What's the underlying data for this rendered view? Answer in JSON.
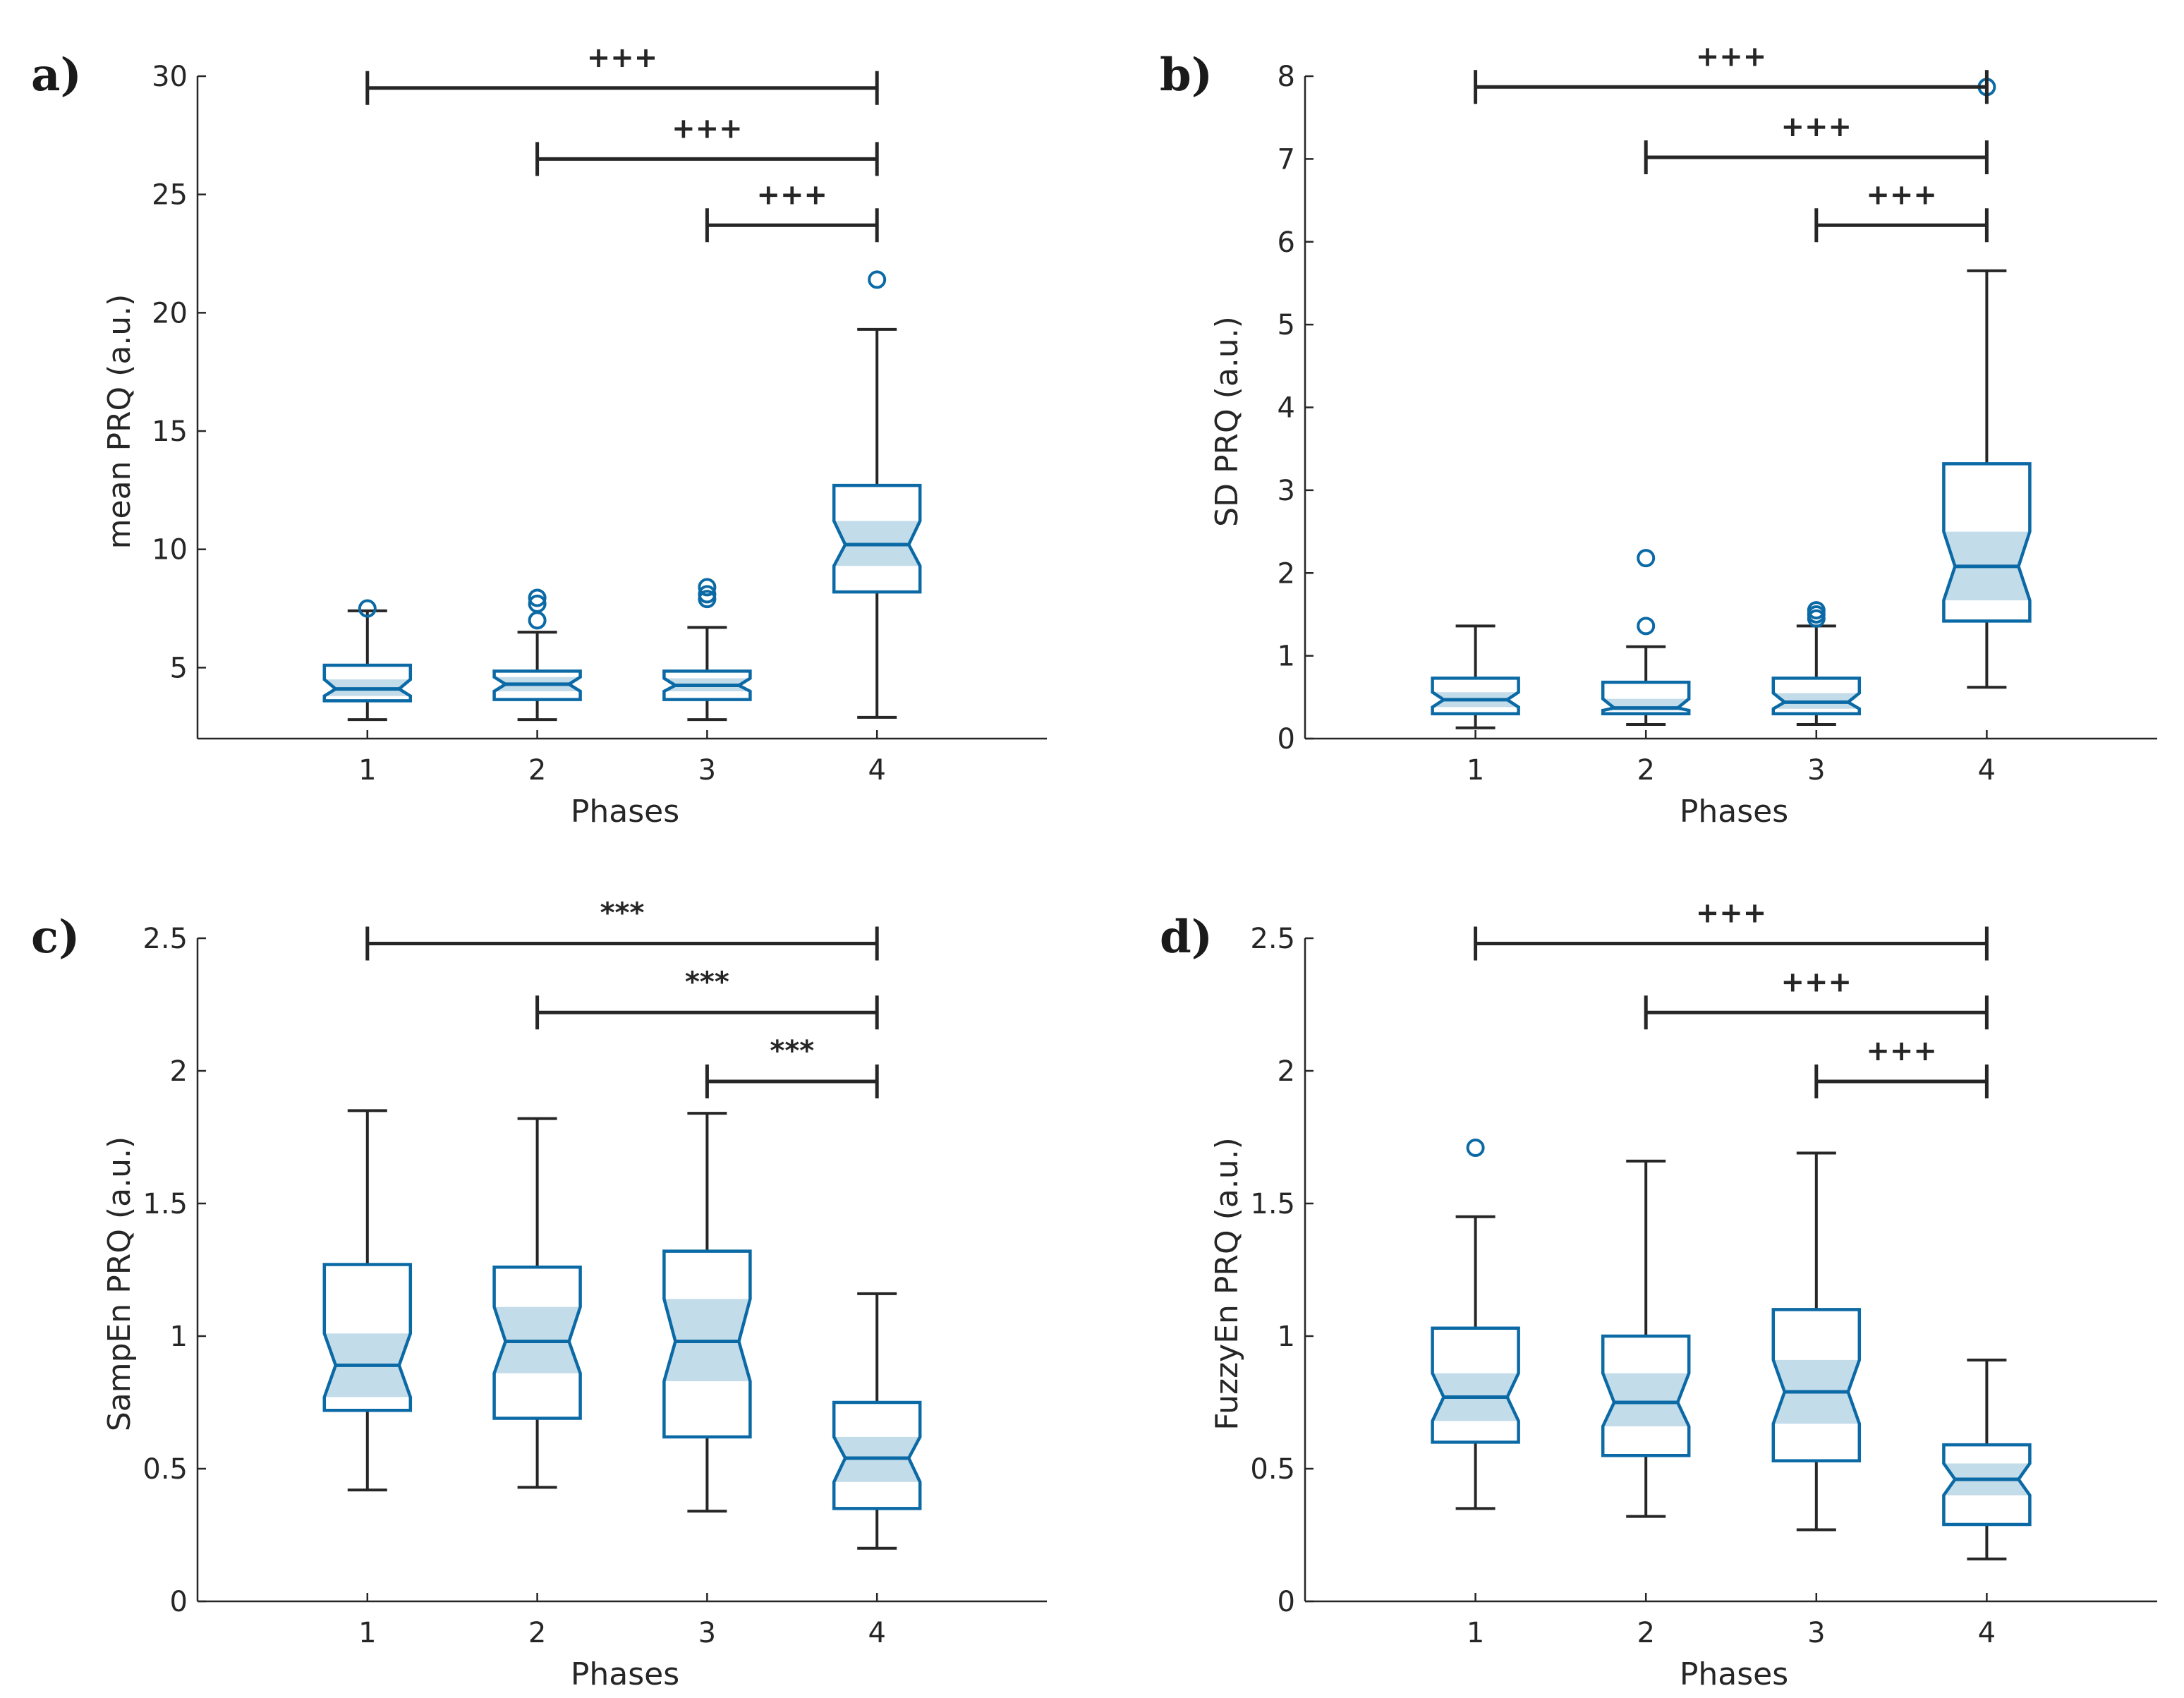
{
  "chart_data": [
    {
      "panel": "a)",
      "type": "box",
      "xlabel": "Phases",
      "ylabel": "mean PRQ (a.u.)",
      "categories": [
        "1",
        "2",
        "3",
        "4"
      ],
      "ylim": [
        2,
        30
      ],
      "yticks": [
        5,
        10,
        15,
        20,
        25,
        30
      ],
      "ytick_labels": [
        "5",
        "10",
        "15",
        "20",
        "25",
        "30"
      ],
      "boxes": [
        {
          "category": "1",
          "whisker_low": 2.8,
          "q1": 3.6,
          "notch_low": 3.8,
          "median": 4.1,
          "notch_high": 4.5,
          "q3": 5.1,
          "whisker_high": 7.4,
          "outliers": [
            7.5
          ]
        },
        {
          "category": "2",
          "whisker_low": 2.8,
          "q1": 3.65,
          "notch_low": 4.0,
          "median": 4.3,
          "notch_high": 4.6,
          "q3": 4.85,
          "whisker_high": 6.5,
          "outliers": [
            7.0,
            7.7,
            7.95
          ]
        },
        {
          "category": "3",
          "whisker_low": 2.8,
          "q1": 3.65,
          "notch_low": 4.0,
          "median": 4.25,
          "notch_high": 4.55,
          "q3": 4.85,
          "whisker_high": 6.7,
          "outliers": [
            7.9,
            8.1,
            8.4
          ]
        },
        {
          "category": "4",
          "whisker_low": 2.9,
          "q1": 8.2,
          "notch_low": 9.3,
          "median": 10.2,
          "notch_high": 11.2,
          "q3": 12.7,
          "whisker_high": 19.3,
          "outliers": [
            21.4
          ]
        }
      ],
      "significance": [
        {
          "from": "1",
          "to": "4",
          "label": "+++",
          "y": 29.5
        },
        {
          "from": "2",
          "to": "4",
          "label": "+++",
          "y": 26.5
        },
        {
          "from": "3",
          "to": "4",
          "label": "+++",
          "y": 23.7
        }
      ]
    },
    {
      "panel": "b)",
      "type": "box",
      "xlabel": "Phases",
      "ylabel": "SD PRQ (a.u.)",
      "categories": [
        "1",
        "2",
        "3",
        "4"
      ],
      "ylim": [
        0,
        8
      ],
      "yticks": [
        0,
        1,
        2,
        3,
        4,
        5,
        6,
        7,
        8
      ],
      "ytick_labels": [
        "0",
        "1",
        "2",
        "3",
        "4",
        "5",
        "6",
        "7",
        "8"
      ],
      "boxes": [
        {
          "category": "1",
          "whisker_low": 0.13,
          "q1": 0.3,
          "notch_low": 0.38,
          "median": 0.47,
          "notch_high": 0.56,
          "q3": 0.73,
          "whisker_high": 1.36,
          "outliers": []
        },
        {
          "category": "2",
          "whisker_low": 0.17,
          "q1": 0.3,
          "notch_low": 0.34,
          "median": 0.37,
          "notch_high": 0.48,
          "q3": 0.68,
          "whisker_high": 1.11,
          "outliers": [
            1.36,
            2.18
          ]
        },
        {
          "category": "3",
          "whisker_low": 0.17,
          "q1": 0.3,
          "notch_low": 0.36,
          "median": 0.44,
          "notch_high": 0.55,
          "q3": 0.73,
          "whisker_high": 1.36,
          "outliers": [
            1.45,
            1.5,
            1.55
          ]
        },
        {
          "category": "4",
          "whisker_low": 0.62,
          "q1": 1.42,
          "notch_low": 1.67,
          "median": 2.08,
          "notch_high": 2.5,
          "q3": 3.32,
          "whisker_high": 5.65,
          "outliers": [
            7.87
          ]
        }
      ],
      "significance": [
        {
          "from": "1",
          "to": "4",
          "label": "+++",
          "y": 7.87
        },
        {
          "from": "2",
          "to": "4",
          "label": "+++",
          "y": 7.02
        },
        {
          "from": "3",
          "to": "4",
          "label": "+++",
          "y": 6.2
        }
      ]
    },
    {
      "panel": "c)",
      "type": "box",
      "xlabel": "Phases",
      "ylabel": "SampEn PRQ (a.u.)",
      "categories": [
        "1",
        "2",
        "3",
        "4"
      ],
      "ylim": [
        0,
        2.5
      ],
      "yticks": [
        0,
        0.5,
        1,
        1.5,
        2,
        2.5
      ],
      "ytick_labels": [
        "0",
        "0.5",
        "1",
        "1.5",
        "2",
        "2.5"
      ],
      "boxes": [
        {
          "category": "1",
          "whisker_low": 0.42,
          "q1": 0.72,
          "notch_low": 0.77,
          "median": 0.89,
          "notch_high": 1.01,
          "q3": 1.27,
          "whisker_high": 1.85,
          "outliers": []
        },
        {
          "category": "2",
          "whisker_low": 0.43,
          "q1": 0.69,
          "notch_low": 0.86,
          "median": 0.98,
          "notch_high": 1.11,
          "q3": 1.26,
          "whisker_high": 1.82,
          "outliers": []
        },
        {
          "category": "3",
          "whisker_low": 0.34,
          "q1": 0.62,
          "notch_low": 0.83,
          "median": 0.98,
          "notch_high": 1.14,
          "q3": 1.32,
          "whisker_high": 1.84,
          "outliers": []
        },
        {
          "category": "4",
          "whisker_low": 0.2,
          "q1": 0.35,
          "notch_low": 0.45,
          "median": 0.54,
          "notch_high": 0.62,
          "q3": 0.75,
          "whisker_high": 1.16,
          "outliers": []
        }
      ],
      "significance": [
        {
          "from": "1",
          "to": "4",
          "label": "***",
          "y": 2.48
        },
        {
          "from": "2",
          "to": "4",
          "label": "***",
          "y": 2.22
        },
        {
          "from": "3",
          "to": "4",
          "label": "***",
          "y": 1.96
        }
      ]
    },
    {
      "panel": "d)",
      "type": "box",
      "xlabel": "Phases",
      "ylabel": "FuzzyEn PRQ (a.u.)",
      "categories": [
        "1",
        "2",
        "3",
        "4"
      ],
      "ylim": [
        0,
        2.5
      ],
      "yticks": [
        0,
        0.5,
        1,
        1.5,
        2,
        2.5
      ],
      "ytick_labels": [
        "0",
        "0.5",
        "1",
        "1.5",
        "2",
        "2.5"
      ],
      "boxes": [
        {
          "category": "1",
          "whisker_low": 0.35,
          "q1": 0.6,
          "notch_low": 0.68,
          "median": 0.77,
          "notch_high": 0.86,
          "q3": 1.03,
          "whisker_high": 1.45,
          "outliers": [
            1.71
          ]
        },
        {
          "category": "2",
          "whisker_low": 0.32,
          "q1": 0.55,
          "notch_low": 0.66,
          "median": 0.75,
          "notch_high": 0.86,
          "q3": 1.0,
          "whisker_high": 1.66,
          "outliers": []
        },
        {
          "category": "3",
          "whisker_low": 0.27,
          "q1": 0.53,
          "notch_low": 0.67,
          "median": 0.79,
          "notch_high": 0.91,
          "q3": 1.1,
          "whisker_high": 1.69,
          "outliers": []
        },
        {
          "category": "4",
          "whisker_low": 0.16,
          "q1": 0.29,
          "notch_low": 0.4,
          "median": 0.46,
          "notch_high": 0.52,
          "q3": 0.59,
          "whisker_high": 0.91,
          "outliers": []
        }
      ],
      "significance": [
        {
          "from": "1",
          "to": "4",
          "label": "+++",
          "y": 2.48
        },
        {
          "from": "2",
          "to": "4",
          "label": "+++",
          "y": 2.22
        },
        {
          "from": "3",
          "to": "4",
          "label": "+++",
          "y": 1.96
        }
      ]
    }
  ]
}
